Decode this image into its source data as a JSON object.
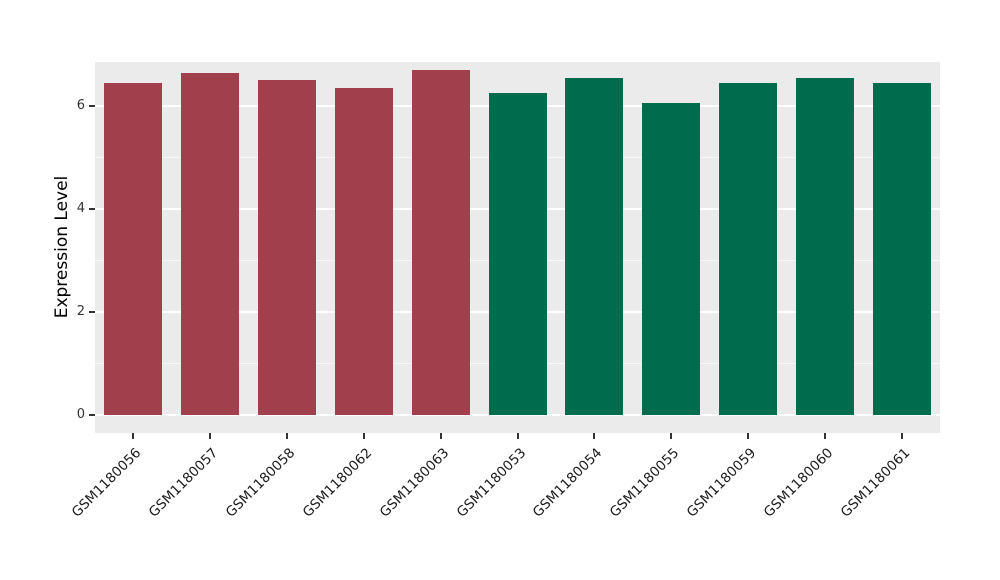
{
  "chart_data": {
    "type": "bar",
    "title": "",
    "xlabel": "",
    "ylabel": "Expression Level",
    "categories": [
      "GSM1180056",
      "GSM1180057",
      "GSM1180058",
      "GSM1180062",
      "GSM1180063",
      "GSM1180053",
      "GSM1180054",
      "GSM1180055",
      "GSM1180059",
      "GSM1180060",
      "GSM1180061"
    ],
    "values": [
      6.45,
      6.65,
      6.5,
      6.35,
      6.7,
      6.25,
      6.55,
      6.05,
      6.45,
      6.55,
      6.45
    ],
    "bar_colors": [
      "#A13F4D",
      "#A13F4D",
      "#A13F4D",
      "#A13F4D",
      "#A13F4D",
      "#006B4D",
      "#006B4D",
      "#006B4D",
      "#006B4D",
      "#006B4D",
      "#006B4D"
    ],
    "group_colors": {
      "group1": "#A13F4D",
      "group2": "#006B4D"
    },
    "yticks": [
      0,
      2,
      4,
      6
    ],
    "yticks_minor": [
      1,
      3,
      5
    ],
    "ylim": [
      0,
      6.9
    ],
    "grid": "on",
    "legend": "none",
    "panel_background": "#EBEBEB",
    "grid_color": "#FFFFFF"
  }
}
